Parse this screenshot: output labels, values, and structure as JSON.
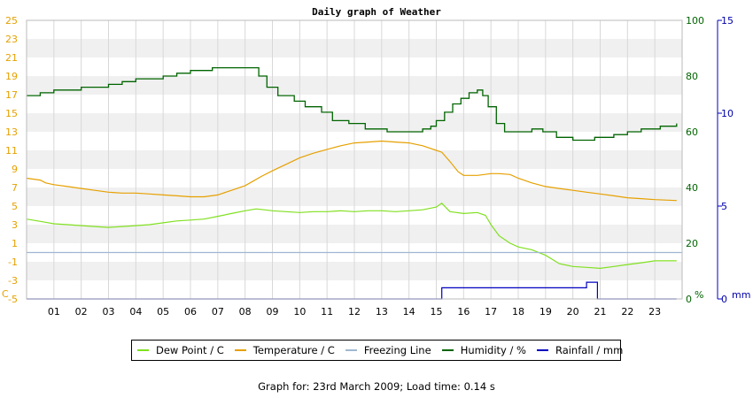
{
  "chart_data": {
    "type": "line",
    "title": "Daily graph of Weather",
    "x_ticks": [
      "01",
      "02",
      "03",
      "04",
      "05",
      "06",
      "07",
      "08",
      "09",
      "10",
      "11",
      "12",
      "13",
      "14",
      "15",
      "16",
      "17",
      "18",
      "19",
      "20",
      "21",
      "22",
      "23"
    ],
    "xlim": [
      0,
      24
    ],
    "y_left": {
      "unit_label": "C",
      "lim": [
        -5,
        25
      ],
      "ticks": [
        -5,
        -3,
        -1,
        1,
        3,
        5,
        7,
        9,
        11,
        13,
        15,
        17,
        19,
        21,
        23,
        25
      ],
      "color": "#e6a000"
    },
    "y_right_humidity": {
      "unit_label": "%",
      "lim": [
        0,
        100
      ],
      "ticks": [
        0,
        20,
        40,
        60,
        80,
        100
      ],
      "color": "#006400"
    },
    "y_right_rain": {
      "unit_label": "mm",
      "lim": [
        0,
        15
      ],
      "ticks": [
        0,
        5,
        10,
        15
      ],
      "color": "#0000aa"
    },
    "series": [
      {
        "name": "Dew Point / C",
        "axis": "temp",
        "color": "#80e020",
        "x": [
          0,
          0.6,
          1,
          1.5,
          2,
          2.5,
          3,
          3.5,
          4,
          4.5,
          5,
          5.5,
          6,
          6.5,
          7,
          7.5,
          8,
          8.4,
          8.7,
          9,
          9.5,
          10,
          10.5,
          11,
          11.5,
          12,
          12.5,
          13,
          13.5,
          14,
          14.5,
          15,
          15.2,
          15.5,
          16,
          16.5,
          16.8,
          17,
          17.3,
          17.7,
          18,
          18.5,
          19,
          19.5,
          20,
          20.5,
          21,
          21.5,
          22,
          22.5,
          23,
          23.8
        ],
        "y": [
          3.6,
          3.3,
          3.1,
          3.0,
          2.9,
          2.8,
          2.7,
          2.8,
          2.9,
          3.0,
          3.2,
          3.4,
          3.5,
          3.6,
          3.9,
          4.2,
          4.5,
          4.7,
          4.6,
          4.5,
          4.4,
          4.3,
          4.4,
          4.4,
          4.5,
          4.4,
          4.5,
          4.5,
          4.4,
          4.5,
          4.6,
          4.9,
          5.3,
          4.4,
          4.2,
          4.3,
          4.0,
          3.0,
          1.8,
          1.0,
          0.6,
          0.3,
          -0.3,
          -1.2,
          -1.5,
          -1.6,
          -1.7,
          -1.5,
          -1.3,
          -1.1,
          -0.9,
          -0.9
        ]
      },
      {
        "name": "Temperature / C",
        "axis": "temp",
        "color": "#e6a000",
        "x": [
          0,
          0.5,
          0.7,
          1,
          1.5,
          2,
          2.5,
          3,
          3.5,
          4,
          4.5,
          5,
          5.5,
          6,
          6.5,
          7,
          7.5,
          8,
          8.3,
          8.6,
          9,
          9.5,
          10,
          10.5,
          11,
          11.5,
          12,
          12.5,
          13,
          13.5,
          14,
          14.5,
          15,
          15.2,
          15.5,
          15.8,
          16,
          16.5,
          17,
          17.3,
          17.7,
          18,
          18.5,
          19,
          19.5,
          20,
          20.5,
          21,
          21.5,
          22,
          22.5,
          23,
          23.8
        ],
        "y": [
          8.0,
          7.8,
          7.5,
          7.3,
          7.1,
          6.9,
          6.7,
          6.5,
          6.4,
          6.4,
          6.3,
          6.2,
          6.1,
          6.0,
          6.0,
          6.2,
          6.7,
          7.2,
          7.7,
          8.2,
          8.8,
          9.5,
          10.2,
          10.7,
          11.1,
          11.5,
          11.8,
          11.9,
          12.0,
          11.9,
          11.8,
          11.5,
          11.0,
          10.8,
          9.8,
          8.7,
          8.3,
          8.3,
          8.5,
          8.5,
          8.4,
          8.0,
          7.5,
          7.1,
          6.9,
          6.7,
          6.5,
          6.3,
          6.1,
          5.9,
          5.8,
          5.7,
          5.6
        ]
      },
      {
        "name": "Freezing Line",
        "axis": "temp",
        "color": "#a0b8d0",
        "x": [
          0,
          24
        ],
        "y": [
          0,
          0
        ]
      },
      {
        "name": "Humidity / %",
        "axis": "humidity",
        "color": "#006400",
        "step": true,
        "x": [
          0,
          0.5,
          1,
          2,
          3,
          3.5,
          4,
          5,
          5.5,
          6,
          6.8,
          8.4,
          8.5,
          8.8,
          9.2,
          9.8,
          10.2,
          10.8,
          11.2,
          11.8,
          12.4,
          13.2,
          14.0,
          14.5,
          14.8,
          15.0,
          15.3,
          15.6,
          15.9,
          16.2,
          16.5,
          16.7,
          16.9,
          17.2,
          17.5,
          18.0,
          18.5,
          18.9,
          19.4,
          20.0,
          20.8,
          21.5,
          22.0,
          22.5,
          23.2,
          23.8
        ],
        "y": [
          73,
          74,
          75,
          76,
          77,
          78,
          79,
          80,
          81,
          82,
          83,
          83,
          80,
          76,
          73,
          71,
          69,
          67,
          64,
          63,
          61,
          60,
          60,
          61,
          62,
          64,
          67,
          70,
          72,
          74,
          75,
          73,
          69,
          63,
          60,
          60,
          61,
          60,
          58,
          57,
          58,
          59,
          60,
          61,
          62,
          63
        ]
      },
      {
        "name": "Rainfall / mm",
        "axis": "rain",
        "color": "#0000c0",
        "step": true,
        "x": [
          0,
          15.2,
          20.5,
          20.8,
          20.9,
          23.8
        ],
        "y": [
          0,
          0.6,
          0.9,
          0.9,
          0,
          0
        ]
      }
    ],
    "grid": true,
    "legend": "bottom"
  },
  "legend_items": [
    {
      "label": "Dew Point / C",
      "color": "#80e020"
    },
    {
      "label": "Temperature / C",
      "color": "#e6a000"
    },
    {
      "label": "Freezing Line",
      "color": "#a0b8d0"
    },
    {
      "label": "Humidity / %",
      "color": "#006400"
    },
    {
      "label": "Rainfall / mm",
      "color": "#0000c0"
    }
  ],
  "footer": "Graph for: 23rd March 2009; Load time: 0.14 s"
}
